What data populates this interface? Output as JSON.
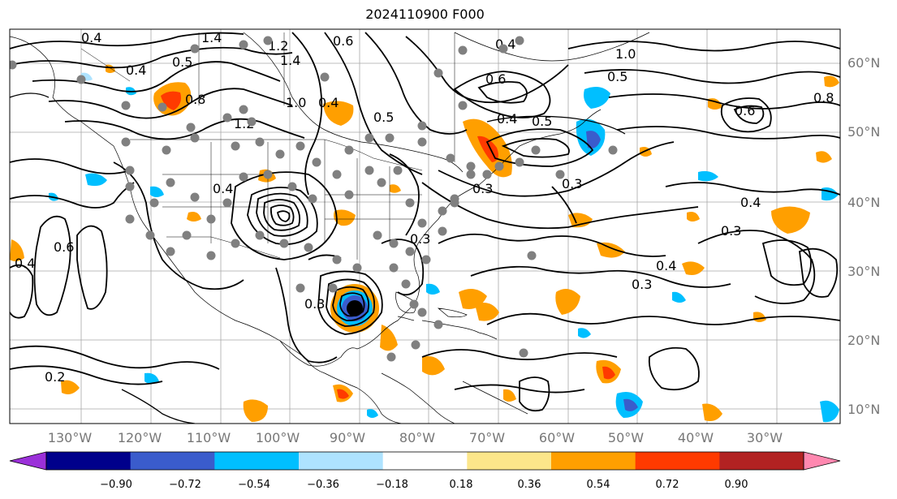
{
  "title": "2024110900 F000",
  "map": {
    "lon_labels": [
      "130°W",
      "120°W",
      "110°W",
      "100°W",
      "90°W",
      "80°W",
      "70°W",
      "60°W",
      "50°W",
      "40°W",
      "30°W"
    ],
    "lat_labels": [
      "60°N",
      "50°N",
      "40°N",
      "30°N",
      "20°N",
      "10°N"
    ],
    "contour_labels": [
      "0.4",
      "1.4",
      "1.2",
      "0.6",
      "0.5",
      "0.4",
      "1.4",
      "0.8",
      "1.0",
      "1.2",
      "0.4",
      "0.5",
      "0.4",
      "0.5",
      "0.6",
      "1.0",
      "0.8",
      "0.6",
      "0.5",
      "0.4",
      "0.3",
      "0.3",
      "0.4",
      "0.3",
      "0.4",
      "0.3",
      "0.6",
      "0.4",
      "0.3",
      "0.2",
      "0.4",
      "0.3"
    ],
    "colors": {
      "land_lines": "#000000",
      "grid": "#a8a8a8",
      "station_dots": "#808080"
    }
  },
  "colorbar": {
    "colors": [
      "#9b30d9",
      "#00008b",
      "#3a5ccc",
      "#00bfff",
      "#aee3ff",
      "#ffffff",
      "#fce68a",
      "#ff9f00",
      "#ff3a00",
      "#b22222",
      "#ff88b0"
    ],
    "tick_labels": [
      "−0.90",
      "−0.72",
      "−0.54",
      "−0.36",
      "−0.18",
      "0.18",
      "0.36",
      "0.54",
      "0.72",
      "0.90"
    ]
  }
}
